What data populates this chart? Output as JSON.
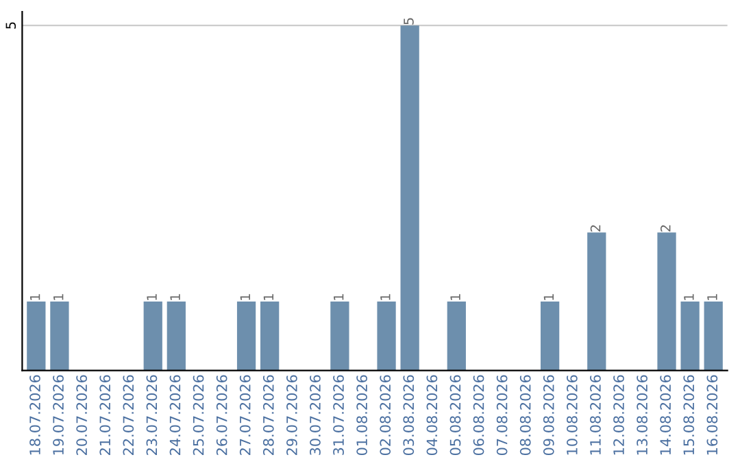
{
  "chart_data": {
    "type": "bar",
    "categories": [
      "18.07.2026",
      "19.07.2026",
      "20.07.2026",
      "21.07.2026",
      "22.07.2026",
      "23.07.2026",
      "24.07.2026",
      "25.07.2026",
      "26.07.2026",
      "27.07.2026",
      "28.07.2026",
      "29.07.2026",
      "30.07.2026",
      "31.07.2026",
      "01.08.2026",
      "02.08.2026",
      "03.08.2026",
      "04.08.2026",
      "05.08.2026",
      "06.08.2026",
      "07.08.2026",
      "08.08.2026",
      "09.08.2026",
      "10.08.2026",
      "11.08.2026",
      "12.08.2026",
      "13.08.2026",
      "14.08.2026",
      "15.08.2026",
      "16.08.2026"
    ],
    "values": [
      1,
      1,
      0,
      0,
      0,
      1,
      1,
      0,
      0,
      1,
      1,
      0,
      0,
      1,
      0,
      1,
      5,
      0,
      1,
      0,
      0,
      0,
      1,
      0,
      2,
      0,
      0,
      2,
      1,
      1
    ],
    "value_labels": [
      "1",
      "1",
      null,
      null,
      null,
      "1",
      "1",
      null,
      null,
      "1",
      "1",
      null,
      null,
      "1",
      null,
      "1",
      "5",
      null,
      "1",
      null,
      null,
      null,
      "1",
      null,
      "2",
      null,
      null,
      "2",
      "1",
      "1"
    ],
    "color": "#6d8fad",
    "ylim": [
      0,
      5.2
    ],
    "yticks": [
      5
    ],
    "grid": "y"
  }
}
